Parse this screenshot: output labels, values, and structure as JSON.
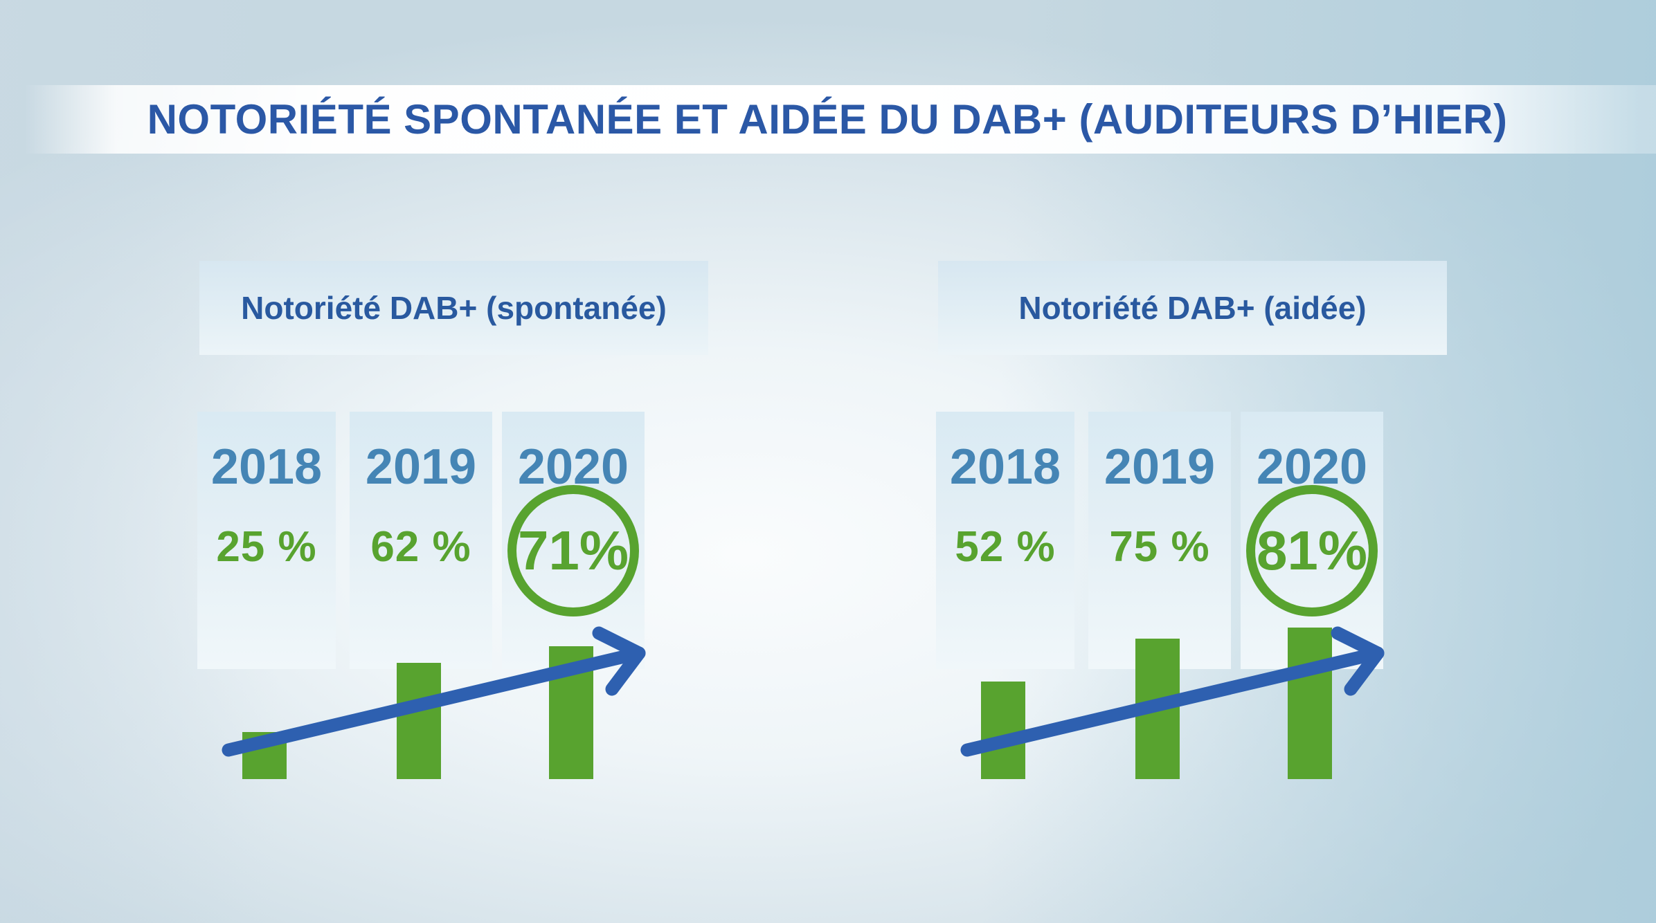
{
  "title": "NOTORIÉTÉ SPONTANÉE ET AIDÉE DU DAB+ (AUDITEURS D’HIER)",
  "chart_data": [
    {
      "type": "bar",
      "title": "Notoriété DAB+ (spontanée)",
      "categories": [
        "2018",
        "2019",
        "2020"
      ],
      "values": [
        25,
        62,
        71
      ],
      "value_labels": [
        "25 %",
        "62 %",
        "71%"
      ],
      "unit": "%",
      "ylim": [
        0,
        100
      ],
      "highlighted": "2020",
      "highlight_style": "green-circle",
      "trend_arrow": "up",
      "xlabel": "",
      "ylabel": "",
      "grid": false,
      "legend": "none"
    },
    {
      "type": "bar",
      "title": "Notoriété DAB+ (aidée)",
      "categories": [
        "2018",
        "2019",
        "2020"
      ],
      "values": [
        52,
        75,
        81
      ],
      "value_labels": [
        "52 %",
        "75 %",
        "81%"
      ],
      "unit": "%",
      "ylim": [
        0,
        100
      ],
      "highlighted": "2020",
      "highlight_style": "green-circle",
      "trend_arrow": "up",
      "xlabel": "",
      "ylabel": "",
      "grid": false,
      "legend": "none"
    }
  ],
  "colors": {
    "title_blue": "#2b58a6",
    "header_blue": "#29599f",
    "year_blue": "#4585b5",
    "green": "#58a32f",
    "arrow_blue": "#2e60b0",
    "column_bg": "#ddebf3",
    "header_bg": "#d9e8f2",
    "title_strip_bg": "#ffffff"
  }
}
